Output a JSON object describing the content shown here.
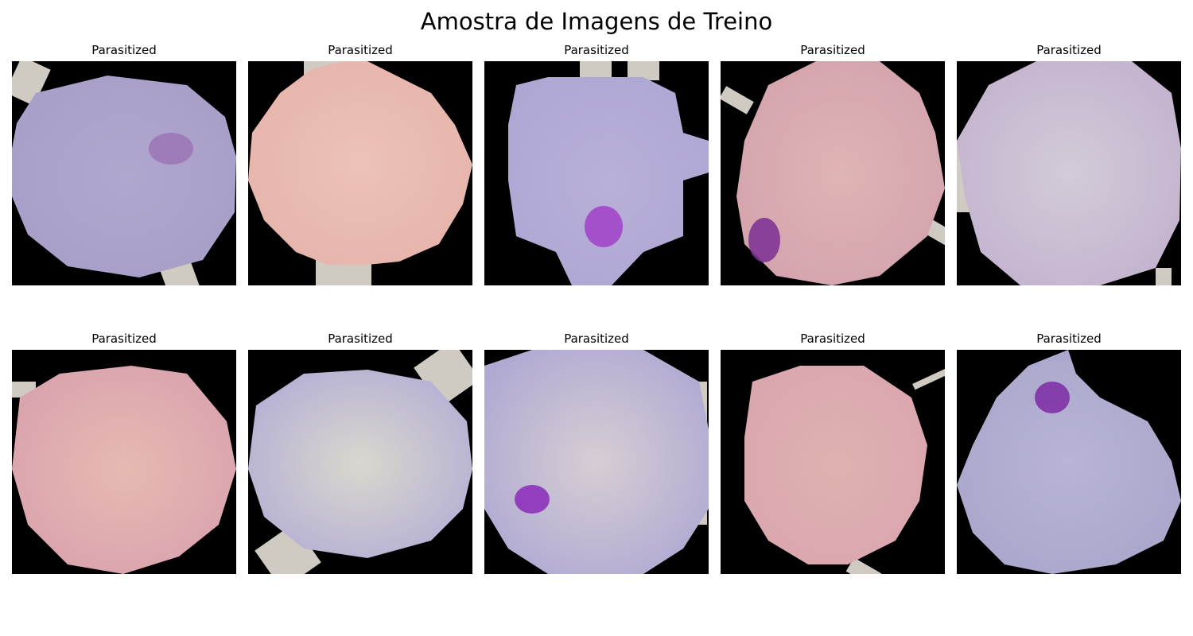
{
  "figure": {
    "title": "Amostra de Imagens de Treino"
  },
  "panels": [
    {
      "label": "Parasitized",
      "tone": "#a79fc8",
      "center": "#b0a6cf",
      "spot": "#9d74b6"
    },
    {
      "label": "Parasitized",
      "tone": "#e6b3a9",
      "center": "#ecc2b8",
      "spot": null
    },
    {
      "label": "Parasitized",
      "tone": "#aea7d3",
      "center": "#b8b0d8",
      "spot": "#a140c9"
    },
    {
      "label": "Parasitized",
      "tone": "#d3a3ad",
      "center": "#dfb4b4",
      "spot": "#7a2f93"
    },
    {
      "label": "Parasitized",
      "tone": "#c3b3cf",
      "center": "#d2cbd8",
      "spot": null
    },
    {
      "label": "Parasitized",
      "tone": "#d9a2ad",
      "center": "#e7b9b2",
      "spot": null
    },
    {
      "label": "Parasitized",
      "tone": "#b5aed5",
      "center": "#d8d8cd",
      "spot": null
    },
    {
      "label": "Parasitized",
      "tone": "#b0aad3",
      "center": "#d7cdd3",
      "spot": "#8a2ab8"
    },
    {
      "label": "Parasitized",
      "tone": "#d9a6ae",
      "center": "#e0b1b0",
      "spot": null
    },
    {
      "label": "Parasitized",
      "tone": "#a9a6cb",
      "center": "#b9b4d6",
      "spot": "#7c2aa5"
    }
  ]
}
